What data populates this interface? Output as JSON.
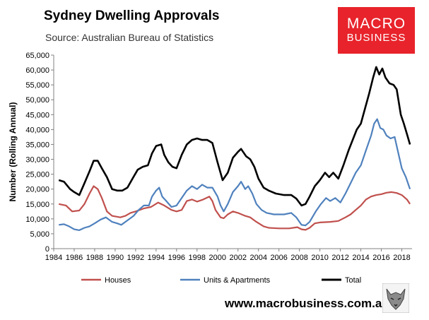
{
  "header": {
    "title": "Sydney Dwelling Approvals",
    "subtitle": "Source: Australian Bureau of Statistics"
  },
  "logo": {
    "line1": "MACRO",
    "line2": "BUSINESS"
  },
  "footer": {
    "website": "www.macrobusiness.com.au"
  },
  "colors": {
    "houses": "#c0504d",
    "units": "#4f81bd",
    "total": "#000000",
    "brand": "#e8232b"
  },
  "chart_data": {
    "type": "line",
    "title": "Sydney Dwelling Approvals",
    "subtitle": "Source: Australian Bureau of Statistics",
    "xlabel": "",
    "ylabel": "Number (Rolling Annual)",
    "xlim": [
      1984,
      2019
    ],
    "ylim": [
      0,
      65000
    ],
    "x_ticks": [
      "1984",
      "1986",
      "1988",
      "1990",
      "1992",
      "1994",
      "1996",
      "1998",
      "2000",
      "2002",
      "2004",
      "2006",
      "2008",
      "2010",
      "2012",
      "2014",
      "2016",
      "2018"
    ],
    "y_ticks": [
      "0",
      "5,000",
      "10,000",
      "15,000",
      "20,000",
      "25,000",
      "30,000",
      "35,000",
      "40,000",
      "45,000",
      "50,000",
      "55,000",
      "60,000",
      "65,000"
    ],
    "grid": false,
    "legend_position": "bottom",
    "series": [
      {
        "name": "Houses",
        "color": "#c0504d",
        "points": [
          [
            1984.5,
            15000
          ],
          [
            1985.2,
            14500
          ],
          [
            1985.8,
            12500
          ],
          [
            1986.5,
            12800
          ],
          [
            1987.0,
            15000
          ],
          [
            1987.5,
            18500
          ],
          [
            1987.9,
            21000
          ],
          [
            1988.3,
            20000
          ],
          [
            1988.7,
            17000
          ],
          [
            1989.2,
            12500
          ],
          [
            1989.7,
            11000
          ],
          [
            1990.5,
            10500
          ],
          [
            1991.0,
            11000
          ],
          [
            1991.5,
            12000
          ],
          [
            1992.0,
            12500
          ],
          [
            1992.8,
            13500
          ],
          [
            1993.5,
            14000
          ],
          [
            1994.2,
            15500
          ],
          [
            1994.8,
            14500
          ],
          [
            1995.5,
            13000
          ],
          [
            1996.0,
            12500
          ],
          [
            1996.5,
            13000
          ],
          [
            1997.0,
            16000
          ],
          [
            1997.5,
            16500
          ],
          [
            1998.0,
            15800
          ],
          [
            1998.6,
            16500
          ],
          [
            1999.2,
            17500
          ],
          [
            1999.5,
            16000
          ],
          [
            1999.8,
            13000
          ],
          [
            2000.3,
            10500
          ],
          [
            2000.6,
            10200
          ],
          [
            2001.0,
            11500
          ],
          [
            2001.5,
            12500
          ],
          [
            2002.0,
            12000
          ],
          [
            2002.7,
            11000
          ],
          [
            2003.2,
            10500
          ],
          [
            2003.8,
            9000
          ],
          [
            2004.5,
            7500
          ],
          [
            2005.0,
            7000
          ],
          [
            2006.0,
            6800
          ],
          [
            2007.0,
            6800
          ],
          [
            2007.8,
            7200
          ],
          [
            2008.2,
            6500
          ],
          [
            2008.6,
            6300
          ],
          [
            2009.0,
            7000
          ],
          [
            2009.5,
            8500
          ],
          [
            2010.0,
            8800
          ],
          [
            2011.0,
            9000
          ],
          [
            2011.8,
            9300
          ],
          [
            2012.5,
            10500
          ],
          [
            2013.0,
            11500
          ],
          [
            2013.5,
            13000
          ],
          [
            2014.0,
            14500
          ],
          [
            2014.5,
            16500
          ],
          [
            2015.0,
            17500
          ],
          [
            2015.5,
            18000
          ],
          [
            2016.0,
            18300
          ],
          [
            2016.5,
            18800
          ],
          [
            2017.0,
            19000
          ],
          [
            2017.5,
            18700
          ],
          [
            2018.0,
            18000
          ],
          [
            2018.5,
            16500
          ],
          [
            2018.8,
            15000
          ]
        ]
      },
      {
        "name": "Units & Apartments",
        "color": "#4f81bd",
        "points": [
          [
            1984.5,
            8000
          ],
          [
            1985.0,
            8200
          ],
          [
            1985.5,
            7500
          ],
          [
            1986.0,
            6500
          ],
          [
            1986.5,
            6200
          ],
          [
            1987.0,
            7000
          ],
          [
            1987.5,
            7500
          ],
          [
            1988.0,
            8500
          ],
          [
            1988.6,
            9800
          ],
          [
            1989.1,
            10500
          ],
          [
            1989.7,
            9000
          ],
          [
            1990.2,
            8500
          ],
          [
            1990.6,
            8000
          ],
          [
            1991.2,
            9500
          ],
          [
            1991.8,
            11000
          ],
          [
            1992.3,
            13000
          ],
          [
            1992.8,
            14500
          ],
          [
            1993.3,
            14500
          ],
          [
            1993.6,
            17500
          ],
          [
            1994.0,
            19500
          ],
          [
            1994.3,
            20500
          ],
          [
            1994.6,
            17500
          ],
          [
            1995.0,
            16000
          ],
          [
            1995.5,
            14000
          ],
          [
            1996.0,
            14500
          ],
          [
            1996.5,
            17000
          ],
          [
            1997.0,
            19500
          ],
          [
            1997.5,
            21000
          ],
          [
            1998.0,
            20000
          ],
          [
            1998.5,
            21500
          ],
          [
            1999.0,
            20500
          ],
          [
            1999.5,
            20500
          ],
          [
            2000.0,
            17500
          ],
          [
            2000.3,
            14500
          ],
          [
            2000.6,
            12500
          ],
          [
            2001.0,
            15000
          ],
          [
            2001.5,
            19000
          ],
          [
            2002.0,
            21000
          ],
          [
            2002.3,
            22500
          ],
          [
            2002.7,
            20000
          ],
          [
            2003.0,
            21000
          ],
          [
            2003.4,
            18500
          ],
          [
            2003.8,
            15000
          ],
          [
            2004.3,
            13000
          ],
          [
            2004.8,
            12000
          ],
          [
            2005.5,
            11500
          ],
          [
            2006.5,
            11500
          ],
          [
            2007.2,
            12000
          ],
          [
            2007.7,
            10500
          ],
          [
            2008.2,
            8000
          ],
          [
            2008.6,
            7800
          ],
          [
            2009.0,
            9000
          ],
          [
            2009.6,
            12500
          ],
          [
            2010.1,
            15000
          ],
          [
            2010.6,
            17000
          ],
          [
            2011.0,
            16000
          ],
          [
            2011.5,
            17000
          ],
          [
            2012.0,
            15500
          ],
          [
            2012.5,
            18500
          ],
          [
            2013.0,
            22000
          ],
          [
            2013.5,
            25500
          ],
          [
            2014.0,
            28000
          ],
          [
            2014.5,
            33000
          ],
          [
            2015.0,
            38000
          ],
          [
            2015.3,
            42000
          ],
          [
            2015.6,
            43500
          ],
          [
            2015.9,
            40500
          ],
          [
            2016.2,
            40000
          ],
          [
            2016.5,
            38000
          ],
          [
            2016.9,
            37000
          ],
          [
            2017.3,
            37500
          ],
          [
            2017.6,
            33000
          ],
          [
            2018.0,
            27000
          ],
          [
            2018.4,
            24000
          ],
          [
            2018.8,
            20000
          ]
        ]
      },
      {
        "name": "Total",
        "color": "#000000",
        "points": [
          [
            1984.5,
            23000
          ],
          [
            1985.0,
            22500
          ],
          [
            1985.6,
            20000
          ],
          [
            1986.0,
            19000
          ],
          [
            1986.5,
            18000
          ],
          [
            1987.0,
            22000
          ],
          [
            1987.5,
            26000
          ],
          [
            1987.9,
            29500
          ],
          [
            1988.3,
            29500
          ],
          [
            1988.7,
            27000
          ],
          [
            1989.2,
            24000
          ],
          [
            1989.7,
            20000
          ],
          [
            1990.2,
            19500
          ],
          [
            1990.7,
            19500
          ],
          [
            1991.2,
            20500
          ],
          [
            1991.7,
            23500
          ],
          [
            1992.2,
            26500
          ],
          [
            1992.7,
            27500
          ],
          [
            1993.2,
            28000
          ],
          [
            1993.6,
            32000
          ],
          [
            1994.0,
            34500
          ],
          [
            1994.5,
            35000
          ],
          [
            1994.8,
            31500
          ],
          [
            1995.2,
            29000
          ],
          [
            1995.6,
            27500
          ],
          [
            1996.0,
            27000
          ],
          [
            1996.5,
            31500
          ],
          [
            1997.0,
            35000
          ],
          [
            1997.5,
            36500
          ],
          [
            1998.0,
            37000
          ],
          [
            1998.5,
            36500
          ],
          [
            1999.0,
            36500
          ],
          [
            1999.5,
            35500
          ],
          [
            2000.0,
            29000
          ],
          [
            2000.5,
            23000
          ],
          [
            2001.0,
            25500
          ],
          [
            2001.5,
            30500
          ],
          [
            2002.0,
            32500
          ],
          [
            2002.3,
            33500
          ],
          [
            2002.8,
            31000
          ],
          [
            2003.2,
            30000
          ],
          [
            2003.6,
            27500
          ],
          [
            2004.0,
            23500
          ],
          [
            2004.5,
            20500
          ],
          [
            2005.0,
            19500
          ],
          [
            2005.7,
            18500
          ],
          [
            2006.5,
            18000
          ],
          [
            2007.2,
            18000
          ],
          [
            2007.7,
            16800
          ],
          [
            2008.2,
            14500
          ],
          [
            2008.6,
            15000
          ],
          [
            2009.0,
            17500
          ],
          [
            2009.5,
            21000
          ],
          [
            2010.0,
            23000
          ],
          [
            2010.5,
            25500
          ],
          [
            2010.9,
            24000
          ],
          [
            2011.3,
            25500
          ],
          [
            2011.8,
            23500
          ],
          [
            2012.3,
            28000
          ],
          [
            2012.8,
            33000
          ],
          [
            2013.2,
            36500
          ],
          [
            2013.6,
            40000
          ],
          [
            2014.0,
            42000
          ],
          [
            2014.4,
            47000
          ],
          [
            2014.8,
            52000
          ],
          [
            2015.2,
            57500
          ],
          [
            2015.5,
            61000
          ],
          [
            2015.8,
            58500
          ],
          [
            2016.1,
            60500
          ],
          [
            2016.4,
            57500
          ],
          [
            2016.8,
            55500
          ],
          [
            2017.2,
            55000
          ],
          [
            2017.5,
            53500
          ],
          [
            2017.9,
            45000
          ],
          [
            2018.2,
            42000
          ],
          [
            2018.5,
            38500
          ],
          [
            2018.8,
            35000
          ]
        ]
      }
    ]
  }
}
